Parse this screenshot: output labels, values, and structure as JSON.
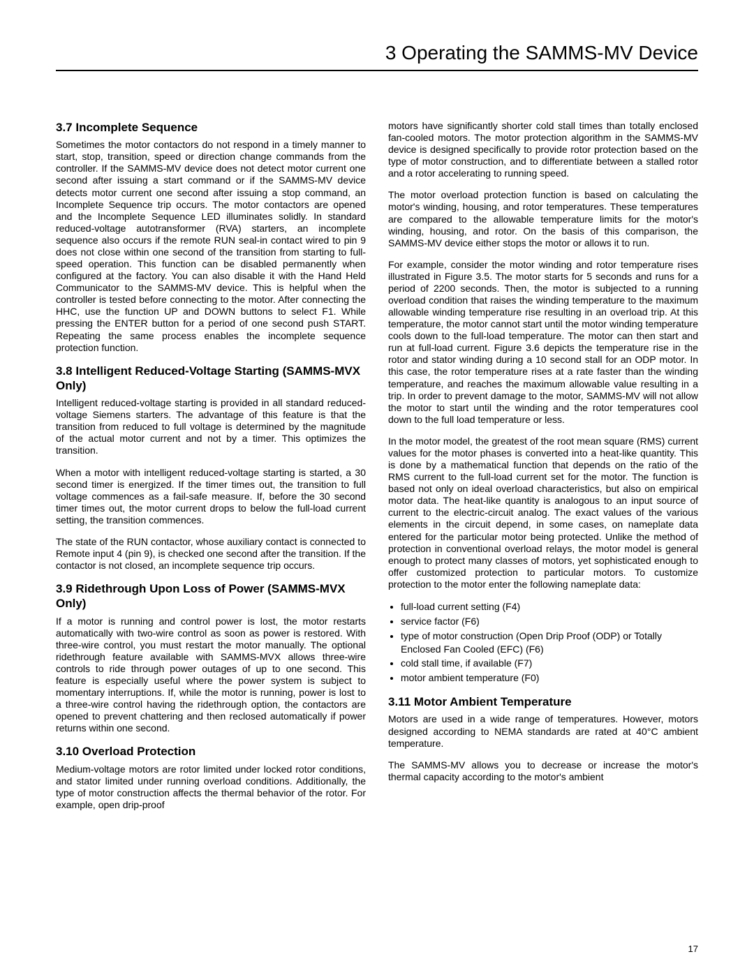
{
  "header": {
    "title": "3 Operating the SAMMS-MV Device"
  },
  "page_number": "17",
  "left_column": {
    "s37": {
      "title": "3.7 Incomplete Sequence",
      "p1": "Sometimes the motor contactors do not respond in a timely manner to start, stop, transition, speed or direction change commands from the controller. If the SAMMS-MV device does not detect motor current one second after issuing a start command or if the SAMMS-MV device detects motor current one second after issuing a stop command, an Incomplete Sequence trip occurs. The motor contactors are opened and the Incomplete Sequence LED illuminates solidly. In standard reduced-voltage autotransformer (RVA) starters, an incomplete sequence also occurs if the remote RUN seal-in contact wired to pin 9 does not close within one second of the transition from starting to full-speed operation. This function can be disabled permanently when configured at the factory. You can also disable it with the Hand Held Communicator to the SAMMS-MV device. This is helpful when the controller is tested before connecting to the motor. After connecting the HHC, use the function UP and DOWN buttons to select F1. While pressing the ENTER button for a period of one second push START. Repeating the same process enables the incomplete sequence protection function."
    },
    "s38": {
      "title": "3.8 Intelligent Reduced-Voltage Starting (SAMMS-MVX Only)",
      "p1": "Intelligent reduced-voltage starting is provided in all standard reduced-voltage Siemens starters. The advantage of this feature is that the transition from reduced to full voltage is determined by the magnitude of the actual motor current and not by a timer. This optimizes the transition.",
      "p2": "When a motor with intelligent reduced-voltage starting is started, a 30 second timer is energized. If the timer times out, the transition to full voltage commences as a fail-safe measure. If, before the 30 second timer times out, the motor current drops to below the full-load current setting, the transition commences.",
      "p3": "The state of the RUN contactor, whose auxiliary contact is connected to Remote input 4 (pin 9), is checked one second after the transition. If the contactor is not closed, an incomplete sequence trip occurs."
    },
    "s39": {
      "title": "3.9 Ridethrough Upon Loss of Power (SAMMS-MVX Only)",
      "p1": "If a motor is running and control power is lost, the motor restarts automatically with two-wire control as soon as power is restored. With three-wire control, you must restart the motor manually. The optional ridethrough feature available with SAMMS-MVX allows three-wire controls to ride through power outages of up to one second. This feature is especially useful where the power system is subject to momentary interruptions. If, while the motor is running, power is lost to a three-wire control having the ridethrough option, the contactors are opened to prevent chattering and then reclosed automatically if power returns within one second."
    },
    "s310": {
      "title": "3.10 Overload Protection",
      "p1": "Medium-voltage motors are rotor limited under locked rotor conditions, and stator limited under running overload conditions. Additionally, the type of motor construction affects the thermal behavior of the rotor. For example, open drip-proof"
    }
  },
  "right_column": {
    "cont": {
      "p1": "motors have significantly shorter cold stall times than totally enclosed fan-cooled motors. The motor protection algorithm in the SAMMS-MV device is designed specifically to provide rotor protection based on the type of motor construction, and to differentiate between a stalled rotor and a rotor accelerating to running speed.",
      "p2": "The motor overload protection function is based on calculating the motor's winding, housing, and rotor temperatures. These temperatures are compared to the allowable temperature limits for the motor's winding, housing, and rotor. On the basis of this comparison, the SAMMS-MV device either stops the motor or allows it to run.",
      "p3": "For example, consider the motor winding and rotor temperature rises illustrated in Figure 3.5. The motor starts for 5 seconds and runs for a period of 2200 seconds. Then, the motor is subjected to a running overload condition that raises the winding temperature to the maximum allowable winding temperature rise resulting in an overload trip. At this temperature, the motor cannot start until the motor winding temperature cools down to the full-load temperature. The motor can then start and run at full-load current. Figure 3.6 depicts the temperature rise in the rotor and stator winding during a 10 second stall for an ODP motor. In this case, the rotor temperature rises at a rate faster than the winding temperature, and reaches the maximum allowable value resulting in a trip. In order to prevent damage to the motor, SAMMS-MV will not allow the motor to start until the winding and the rotor temperatures cool down to the full load temperature or less.",
      "p4": "In the motor model, the greatest of the root mean square (RMS) current values for the motor phases is converted into a heat-like quantity. This is done by a mathematical function that depends on the ratio of the RMS current to the full-load current set for the motor. The function is based not only on ideal overload characteristics, but also on empirical motor data. The heat-like quantity is analogous to an input source of current to the electric-circuit analog. The exact values of the various elements in the circuit depend, in some cases, on nameplate data entered for the particular motor being protected. Unlike the method of protection in conventional overload relays, the motor model is general enough to protect many classes of motors, yet sophisticated enough to offer customized protection to particular motors. To customize protection to the motor enter the following nameplate data:"
    },
    "nameplate_list": [
      "full-load current setting (F4)",
      "service factor (F6)",
      "type of motor construction (Open Drip Proof (ODP) or Totally Enclosed Fan Cooled (EFC) (F6)",
      "cold stall time, if available (F7)",
      "motor ambient temperature (F0)"
    ],
    "s311": {
      "title": "3.11 Motor Ambient Temperature",
      "p1": "Motors are used in a wide range of temperatures. However, motors designed according to NEMA standards are rated at 40°C ambient temperature.",
      "p2": "The SAMMS-MV allows you to decrease or increase the motor's thermal capacity according to the motor's ambient"
    }
  }
}
